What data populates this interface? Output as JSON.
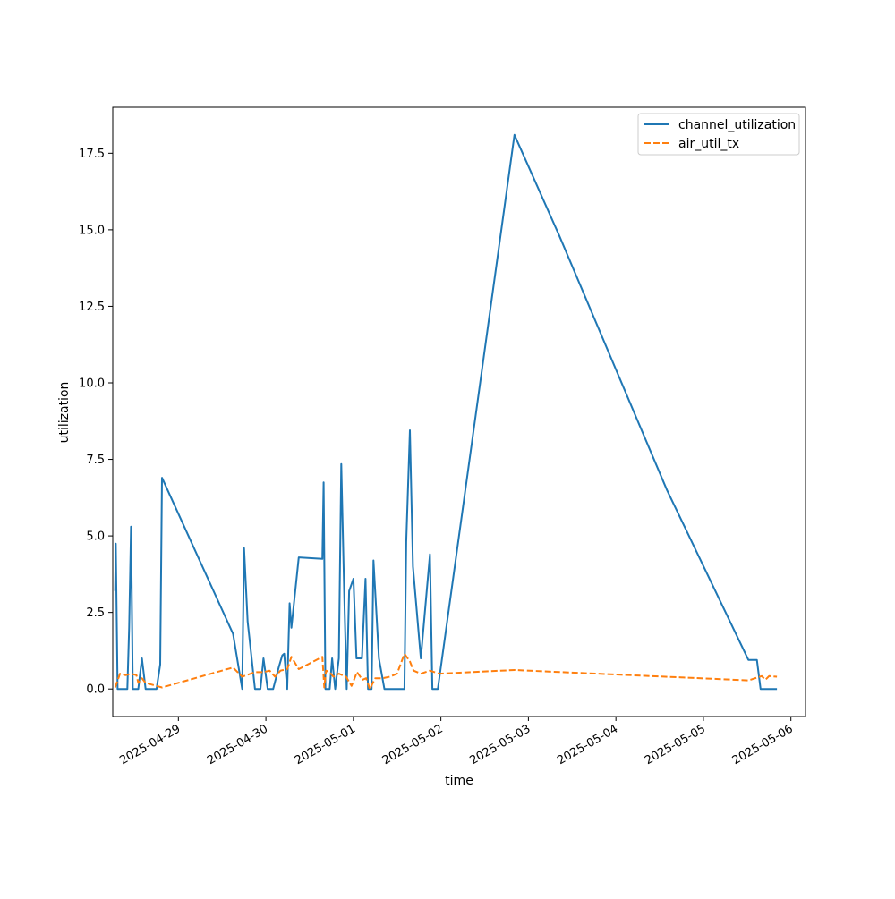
{
  "chart_data": {
    "type": "line",
    "xlabel": "time",
    "ylabel": "utilization",
    "xlim": [
      "2025-04-28 06:00",
      "2025-05-06 04:00"
    ],
    "ylim": [
      -0.9,
      19.0
    ],
    "y_ticks": [
      0.0,
      2.5,
      5.0,
      7.5,
      10.0,
      12.5,
      15.0,
      17.5
    ],
    "y_tick_labels": [
      "0.0",
      "2.5",
      "5.0",
      "7.5",
      "10.0",
      "12.5",
      "15.0",
      "17.5"
    ],
    "x_ticks": [
      "2025-04-29",
      "2025-04-30",
      "2025-05-01",
      "2025-05-02",
      "2025-05-03",
      "2025-05-04",
      "2025-05-05",
      "2025-05-06"
    ],
    "x_tick_labels": [
      "2025-04-29",
      "2025-04-30",
      "2025-05-01",
      "2025-05-02",
      "2025-05-03",
      "2025-05-04",
      "2025-05-05",
      "2025-05-06"
    ],
    "legend_position": "top-right",
    "grid": false,
    "series": [
      {
        "name": "channel_utilization",
        "color": "#1f77b4",
        "style": "solid",
        "points": [
          [
            "2025-04-28 06:40",
            3.2
          ],
          [
            "2025-04-28 06:50",
            4.75
          ],
          [
            "2025-04-28 07:20",
            0.0
          ],
          [
            "2025-04-28 08:30",
            0.0
          ],
          [
            "2025-04-28 09:00",
            0.0
          ],
          [
            "2025-04-28 09:40",
            0.0
          ],
          [
            "2025-04-28 10:00",
            0.0
          ],
          [
            "2025-04-28 10:30",
            2.0
          ],
          [
            "2025-04-28 11:00",
            5.3
          ],
          [
            "2025-04-28 11:30",
            0.0
          ],
          [
            "2025-04-28 13:00",
            0.0
          ],
          [
            "2025-04-28 14:00",
            1.0
          ],
          [
            "2025-04-28 15:00",
            0.0
          ],
          [
            "2025-04-28 18:00",
            0.0
          ],
          [
            "2025-04-28 19:00",
            0.8
          ],
          [
            "2025-04-28 19:30",
            6.9
          ],
          [
            "2025-04-29 15:00",
            1.8
          ],
          [
            "2025-04-29 17:30",
            0.0
          ],
          [
            "2025-04-29 18:00",
            4.6
          ],
          [
            "2025-04-29 19:00",
            2.2
          ],
          [
            "2025-04-29 21:00",
            0.0
          ],
          [
            "2025-04-29 22:30",
            0.0
          ],
          [
            "2025-04-29 23:20",
            1.0
          ],
          [
            "2025-04-30 00:30",
            0.0
          ],
          [
            "2025-04-30 02:00",
            0.0
          ],
          [
            "2025-04-30 03:30",
            0.7
          ],
          [
            "2025-04-30 04:30",
            1.1
          ],
          [
            "2025-04-30 05:00",
            1.15
          ],
          [
            "2025-04-30 05:50",
            0.0
          ],
          [
            "2025-04-30 06:30",
            2.8
          ],
          [
            "2025-04-30 07:00",
            2.0
          ],
          [
            "2025-04-30 09:00",
            4.3
          ],
          [
            "2025-04-30 15:30",
            4.25
          ],
          [
            "2025-04-30 15:50",
            6.75
          ],
          [
            "2025-04-30 16:20",
            0.0
          ],
          [
            "2025-04-30 17:30",
            0.0
          ],
          [
            "2025-04-30 18:10",
            1.0
          ],
          [
            "2025-04-30 19:00",
            0.0
          ],
          [
            "2025-04-30 20:00",
            1.0
          ],
          [
            "2025-04-30 20:40",
            7.35
          ],
          [
            "2025-04-30 21:30",
            3.0
          ],
          [
            "2025-04-30 22:10",
            0.0
          ],
          [
            "2025-04-30 22:50",
            3.2
          ],
          [
            "2025-05-01 00:00",
            3.6
          ],
          [
            "2025-05-01 00:50",
            1.0
          ],
          [
            "2025-05-01 02:20",
            1.0
          ],
          [
            "2025-05-01 03:20",
            3.6
          ],
          [
            "2025-05-01 04:00",
            0.0
          ],
          [
            "2025-05-01 05:00",
            0.0
          ],
          [
            "2025-05-01 05:30",
            4.2
          ],
          [
            "2025-05-01 07:00",
            1.0
          ],
          [
            "2025-05-01 08:30",
            0.0
          ],
          [
            "2025-05-01 10:00",
            0.0
          ],
          [
            "2025-05-01 14:00",
            0.0
          ],
          [
            "2025-05-01 14:30",
            4.8
          ],
          [
            "2025-05-01 15:30",
            8.45
          ],
          [
            "2025-05-01 16:20",
            4.0
          ],
          [
            "2025-05-01 18:30",
            1.0
          ],
          [
            "2025-05-01 21:00",
            4.4
          ],
          [
            "2025-05-01 21:40",
            0.0
          ],
          [
            "2025-05-01 23:10",
            0.0
          ],
          [
            "2025-05-02 20:10",
            18.1
          ],
          [
            "2025-05-03 08:30",
            14.8
          ],
          [
            "2025-05-04 14:00",
            6.5
          ],
          [
            "2025-05-05 12:20",
            0.95
          ],
          [
            "2025-05-05 14:40",
            0.95
          ],
          [
            "2025-05-05 15:40",
            0.0
          ],
          [
            "2025-05-05 20:10",
            0.0
          ]
        ]
      },
      {
        "name": "air_util_tx",
        "color": "#ff7f0e",
        "style": "dashed",
        "points": [
          [
            "2025-04-28 06:40",
            0.05
          ],
          [
            "2025-04-28 08:00",
            0.5
          ],
          [
            "2025-04-28 09:30",
            0.45
          ],
          [
            "2025-04-28 11:00",
            0.5
          ],
          [
            "2025-04-28 12:30",
            0.45
          ],
          [
            "2025-04-28 13:00",
            0.2
          ],
          [
            "2025-04-28 14:00",
            0.35
          ],
          [
            "2025-04-28 15:00",
            0.2
          ],
          [
            "2025-04-28 18:00",
            0.1
          ],
          [
            "2025-04-28 19:30",
            0.05
          ],
          [
            "2025-04-29 15:00",
            0.7
          ],
          [
            "2025-04-29 17:30",
            0.4
          ],
          [
            "2025-04-29 21:00",
            0.55
          ],
          [
            "2025-04-29 23:20",
            0.55
          ],
          [
            "2025-04-30 01:00",
            0.6
          ],
          [
            "2025-04-30 02:30",
            0.4
          ],
          [
            "2025-04-30 04:00",
            0.6
          ],
          [
            "2025-04-30 05:50",
            0.65
          ],
          [
            "2025-04-30 07:00",
            1.05
          ],
          [
            "2025-04-30 09:00",
            0.65
          ],
          [
            "2025-04-30 15:30",
            1.05
          ],
          [
            "2025-04-30 16:00",
            0.05
          ],
          [
            "2025-04-30 16:30",
            0.6
          ],
          [
            "2025-04-30 17:30",
            0.55
          ],
          [
            "2025-04-30 18:30",
            0.4
          ],
          [
            "2025-04-30 20:00",
            0.5
          ],
          [
            "2025-04-30 22:00",
            0.4
          ],
          [
            "2025-04-30 23:30",
            0.1
          ],
          [
            "2025-05-01 01:00",
            0.55
          ],
          [
            "2025-05-01 02:30",
            0.3
          ],
          [
            "2025-05-01 03:30",
            0.35
          ],
          [
            "2025-05-01 04:30",
            0.0
          ],
          [
            "2025-05-01 06:00",
            0.35
          ],
          [
            "2025-05-01 08:00",
            0.35
          ],
          [
            "2025-05-01 10:00",
            0.4
          ],
          [
            "2025-05-01 12:00",
            0.5
          ],
          [
            "2025-05-01 14:00",
            1.15
          ],
          [
            "2025-05-01 15:30",
            0.9
          ],
          [
            "2025-05-01 16:30",
            0.6
          ],
          [
            "2025-05-01 18:30",
            0.5
          ],
          [
            "2025-05-01 21:00",
            0.6
          ],
          [
            "2025-05-01 23:30",
            0.5
          ],
          [
            "2025-05-02 20:10",
            0.62
          ],
          [
            "2025-05-05 12:20",
            0.28
          ],
          [
            "2025-05-05 16:00",
            0.42
          ],
          [
            "2025-05-05 17:00",
            0.3
          ],
          [
            "2025-05-05 18:00",
            0.42
          ],
          [
            "2025-05-05 20:10",
            0.4
          ]
        ]
      }
    ]
  }
}
